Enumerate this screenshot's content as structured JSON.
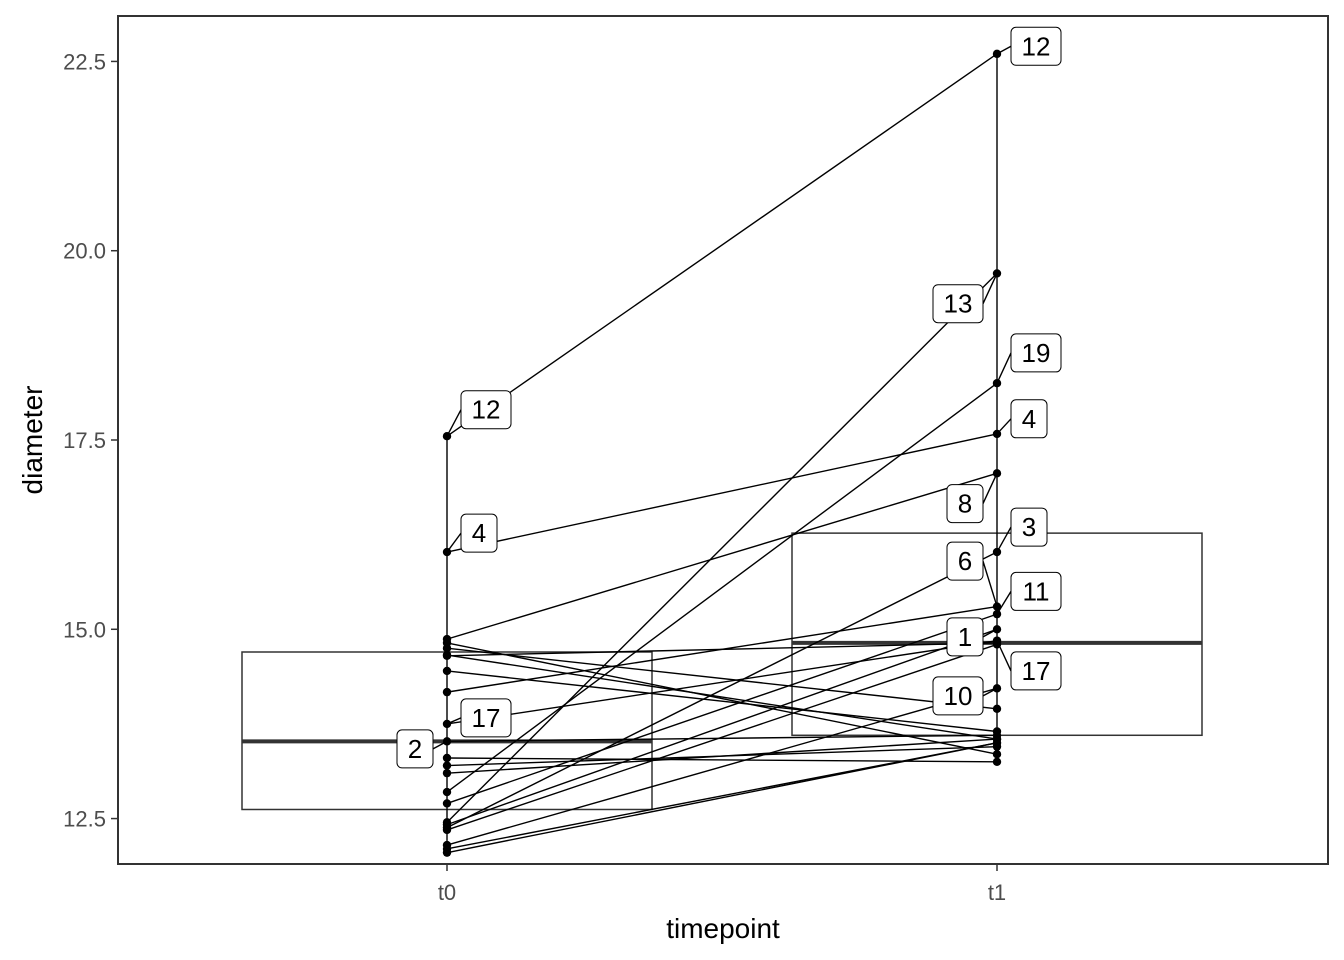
{
  "chart_data": {
    "type": "boxplot-paired",
    "xlabel": "timepoint",
    "ylabel": "diameter",
    "categories": [
      "t0",
      "t1"
    ],
    "ylim": [
      11.9,
      23.1
    ],
    "yticks": [
      12.5,
      15.0,
      17.5,
      20.0,
      22.5
    ],
    "ytick_labels": [
      "12.5",
      "15.0",
      "17.5",
      "20.0",
      "22.5"
    ],
    "grid": false,
    "legend": "none",
    "boxes": [
      {
        "category": "t0",
        "q1": 12.62,
        "median": 13.52,
        "q3": 14.7
      },
      {
        "category": "t1",
        "q1": 13.6,
        "median": 14.82,
        "q3": 16.27
      }
    ],
    "pairs": [
      {
        "t0": 12.42,
        "t1": 15.0
      },
      {
        "t0": 13.52,
        "t1": 13.6
      },
      {
        "t0": 12.38,
        "t1": 16.02
      },
      {
        "t0": 16.02,
        "t1": 17.58
      },
      {
        "t0": 12.1,
        "t1": 13.5
      },
      {
        "t0": 14.17,
        "t1": 15.3
      },
      {
        "t0": 12.35,
        "t1": 14.8
      },
      {
        "t0": 14.87,
        "t1": 17.06
      },
      {
        "t0": 13.3,
        "t1": 13.25
      },
      {
        "t0": 12.15,
        "t1": 14.22
      },
      {
        "t0": 12.7,
        "t1": 15.2
      },
      {
        "t0": 17.55,
        "t1": 22.6
      },
      {
        "t0": 12.45,
        "t1": 19.7
      },
      {
        "t0": 14.82,
        "t1": 13.35
      },
      {
        "t0": 14.45,
        "t1": 13.65
      },
      {
        "t0": 14.66,
        "t1": 13.55
      },
      {
        "t0": 13.75,
        "t1": 14.85
      },
      {
        "t0": 13.2,
        "t1": 13.45
      },
      {
        "t0": 12.85,
        "t1": 18.25
      },
      {
        "t0": 12.05,
        "t1": 13.5
      },
      {
        "t0": 13.1,
        "t1": 13.55
      },
      {
        "t0": 14.75,
        "t1": 13.95
      },
      {
        "t0": 14.65,
        "t1": 14.82
      }
    ],
    "annotations": [
      {
        "text": "12",
        "category": "t0",
        "y": 17.55,
        "side": "right",
        "dy": 0.35
      },
      {
        "text": "4",
        "category": "t0",
        "y": 16.02,
        "side": "right",
        "dy": 0.25
      },
      {
        "text": "17",
        "category": "t0",
        "y": 13.75,
        "side": "right",
        "dy": 0.08
      },
      {
        "text": "2",
        "category": "t0",
        "y": 13.52,
        "side": "left",
        "dy": -0.1
      },
      {
        "text": "12",
        "category": "t1",
        "y": 22.6,
        "side": "right",
        "dy": 0.1
      },
      {
        "text": "13",
        "category": "t1",
        "y": 19.7,
        "side": "left",
        "dy": -0.4
      },
      {
        "text": "19",
        "category": "t1",
        "y": 18.25,
        "side": "right",
        "dy": 0.4
      },
      {
        "text": "4",
        "category": "t1",
        "y": 17.58,
        "side": "right",
        "dy": 0.2
      },
      {
        "text": "8",
        "category": "t1",
        "y": 17.06,
        "side": "left",
        "dy": -0.4
      },
      {
        "text": "3",
        "category": "t1",
        "y": 16.02,
        "side": "right",
        "dy": 0.33
      },
      {
        "text": "6",
        "category": "t1",
        "y": 15.3,
        "side": "left",
        "dy": 0.6
      },
      {
        "text": "11",
        "category": "t1",
        "y": 15.2,
        "side": "right",
        "dy": 0.3
      },
      {
        "text": "1",
        "category": "t1",
        "y": 15.0,
        "side": "left",
        "dy": -0.1
      },
      {
        "text": "17",
        "category": "t1",
        "y": 14.85,
        "side": "right",
        "dy": -0.4
      },
      {
        "text": "10",
        "category": "t1",
        "y": 14.22,
        "side": "left",
        "dy": -0.1
      }
    ]
  }
}
